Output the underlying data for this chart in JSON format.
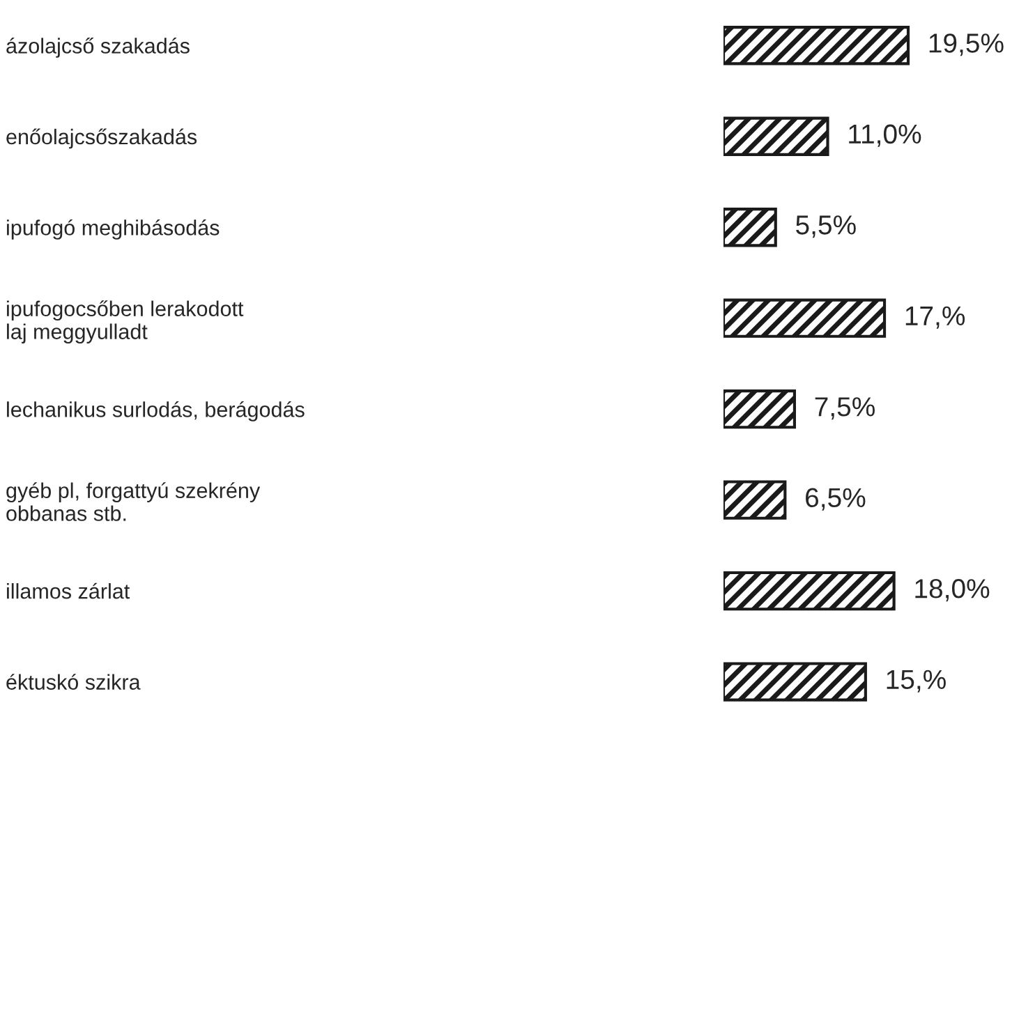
{
  "chart_data": {
    "type": "bar",
    "orientation": "horizontal",
    "categories": [
      "ázolajcső szakadás",
      "enőolajcsőszakadás",
      "ipufogó meghibásodás",
      "ipufogocsőben lerakodott\nlaj meggyulladt",
      "lechanikus surlodás, berágodás",
      "gyéb pl, forgattyú szekrény\nobbanas stb.",
      "illamos zárlat",
      "éktuskó szikra"
    ],
    "values": [
      19.5,
      11.0,
      5.5,
      17,
      7.5,
      6.5,
      18.0,
      15
    ],
    "value_labels": [
      "19,5%",
      "11,0%",
      "5,5%",
      "17,%",
      "7,5%",
      "6,5%",
      "18,0%",
      "15,%"
    ],
    "color": "#1a1a1a",
    "tick_labels": "y"
  }
}
